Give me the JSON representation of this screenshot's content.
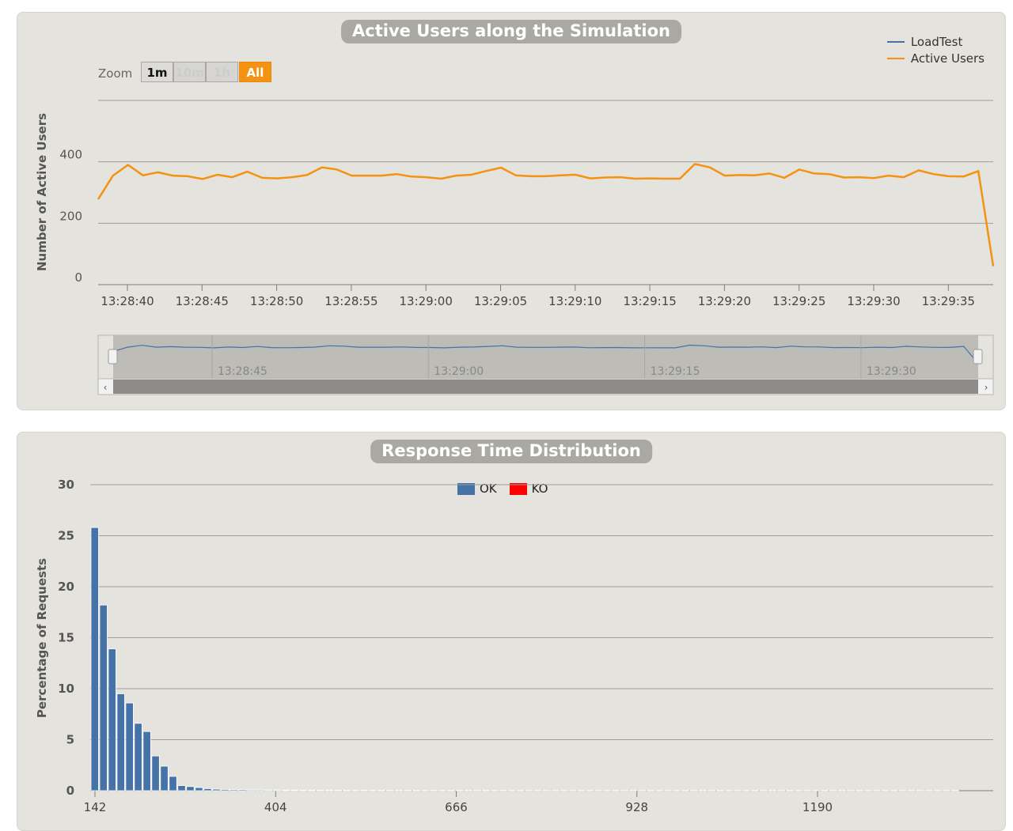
{
  "colors": {
    "loadtest": "#4572a7",
    "active_users": "#f49212",
    "ok": "#4572a7",
    "ko": "#ff0000",
    "grid": "#9d9c97"
  },
  "chart_data": [
    {
      "type": "line",
      "title": "Active Users along the Simulation",
      "ylabel": "Number of Active Users",
      "xlabel": "",
      "ylim": [
        0,
        600
      ],
      "yticks": [
        "0",
        "200",
        "400"
      ],
      "xticks": [
        "13:28:40",
        "13:28:45",
        "13:28:50",
        "13:28:55",
        "13:29:00",
        "13:29:05",
        "13:29:10",
        "13:29:15",
        "13:29:20",
        "13:29:25",
        "13:29:30",
        "13:29:35"
      ],
      "navigator_ticks": [
        "13:28:45",
        "13:29:00",
        "13:29:15",
        "13:29:30"
      ],
      "legend": [
        "LoadTest",
        "Active Users"
      ],
      "legend_position": "top-right",
      "series": [
        {
          "name": "Active Users",
          "values": [
            278,
            355,
            390,
            356,
            366,
            355,
            353,
            344,
            358,
            350,
            368,
            348,
            346,
            350,
            357,
            382,
            375,
            355,
            355,
            355,
            360,
            352,
            350,
            345,
            355,
            358,
            370,
            381,
            356,
            353,
            353,
            356,
            358,
            346,
            349,
            350,
            345,
            346,
            345,
            345,
            393,
            382,
            355,
            357,
            356,
            362,
            348,
            375,
            362,
            360,
            349,
            350,
            347,
            355,
            350,
            372,
            360,
            353,
            352,
            370,
            60
          ]
        }
      ]
    },
    {
      "type": "bar",
      "title": "Response Time Distribution",
      "ylabel": "Percentage of Requests",
      "xlabel": "",
      "ylim": [
        0,
        30
      ],
      "yticks": [
        "0",
        "5",
        "10",
        "15",
        "20",
        "25",
        "30"
      ],
      "xticks": [
        "142",
        "404",
        "666",
        "928",
        "1190"
      ],
      "x_range": [
        142,
        1408
      ],
      "bin_width": 12.6,
      "legend": [
        "OK",
        "KO"
      ],
      "legend_position": "top",
      "series": [
        {
          "name": "OK",
          "values": [
            25.8,
            18.2,
            13.9,
            9.5,
            8.6,
            6.6,
            5.8,
            3.4,
            2.4,
            1.4,
            0.5,
            0.4,
            0.3,
            0.2,
            0.15,
            0.12,
            0.1,
            0.1,
            0.08,
            0.08,
            0.07,
            0.07,
            0.06,
            0.06,
            0.05,
            0.05,
            0.05,
            0.05,
            0.05,
            0.04,
            0.04,
            0.04,
            0.04,
            0.04,
            0.03,
            0.03,
            0.03,
            0.03,
            0.03,
            0.03,
            0.03,
            0.03,
            0.03,
            0.03,
            0.03,
            0.03,
            0.03,
            0.03,
            0.02,
            0.02,
            0.02,
            0.02,
            0.02,
            0.02,
            0.02,
            0.02,
            0.02,
            0.02,
            0.02,
            0.02,
            0.02,
            0.02,
            0.02,
            0.02,
            0.02,
            0.02,
            0.02,
            0.02,
            0.02,
            0.02,
            0.02,
            0.02,
            0.02,
            0.02,
            0.02,
            0.02,
            0.02,
            0.02,
            0.02,
            0.02,
            0.02,
            0.02,
            0.02,
            0.02,
            0.02,
            0.02,
            0.02,
            0.02,
            0.02,
            0.02,
            0.02,
            0.02,
            0.02,
            0.02,
            0.02,
            0.02,
            0.02,
            0.02,
            0.02,
            0.02
          ]
        },
        {
          "name": "KO",
          "values": []
        }
      ]
    }
  ],
  "zoom": {
    "label": "Zoom",
    "buttons": [
      "1m",
      "10m",
      "1h",
      "All"
    ],
    "selected": "All"
  }
}
